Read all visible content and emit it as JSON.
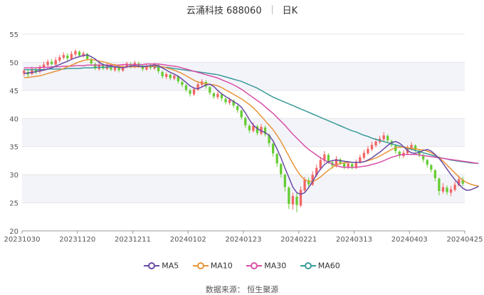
{
  "header": {
    "stock_name": "云涌科技 688060",
    "period": "日K"
  },
  "source_text": "数据来源： 恒生聚源",
  "colors": {
    "up": "#f26464",
    "down": "#66cc33",
    "ma5": "#6a4aa5",
    "ma10": "#e8943a",
    "ma30": "#d94fa8",
    "ma60": "#3a9a9a",
    "grid": "#e6e6e6",
    "band": "#f3f4fa"
  },
  "chart_data": {
    "type": "candlestick",
    "title": "云涌科技 688060 日K",
    "ylim": [
      20,
      55
    ],
    "y_ticks": [
      20,
      25,
      30,
      35,
      40,
      45,
      50,
      55
    ],
    "x_tick_labels": [
      "20231030",
      "20231120",
      "20231211",
      "20240102",
      "20240123",
      "20240221",
      "20240313",
      "20240403",
      "20240425"
    ],
    "legend": [
      "MA5",
      "MA10",
      "MA30",
      "MA60"
    ],
    "ma5": [
      48.0,
      48.1,
      48.2,
      48.3,
      48.5,
      48.6,
      48.8,
      49.0,
      49.3,
      49.6,
      49.9,
      50.2,
      50.5,
      50.8,
      51.0,
      51.2,
      51.3,
      51.0,
      50.6,
      50.0,
      49.6,
      49.4,
      49.3,
      49.2,
      49.1,
      49.0,
      49.2,
      49.3,
      49.4,
      49.3,
      49.2,
      49.3,
      49.4,
      49.5,
      49.4,
      49.0,
      48.6,
      48.2,
      47.9,
      47.5,
      47.0,
      46.4,
      45.8,
      45.4,
      45.3,
      45.6,
      46.0,
      46.1,
      45.7,
      45.0,
      44.4,
      43.9,
      43.5,
      43.0,
      42.6,
      42.0,
      41.0,
      39.8,
      38.8,
      38.2,
      37.8,
      37.5,
      37.0,
      36.0,
      34.6,
      33.0,
      31.2,
      29.5,
      27.8,
      26.8,
      26.5,
      26.8,
      27.7,
      28.8,
      30.0,
      31.0,
      31.8,
      32.3,
      32.5,
      32.6,
      32.5,
      32.4,
      32.3,
      32.2,
      32.2,
      32.2,
      32.3,
      32.6,
      33.0,
      33.5,
      34.0,
      34.6,
      35.2,
      35.7,
      35.9,
      35.6,
      35.0,
      34.3,
      33.9,
      33.8,
      34.0,
      34.3,
      34.5,
      34.2,
      33.6,
      32.9,
      32.0,
      31.0,
      30.0,
      29.1,
      28.3,
      27.6,
      27.2,
      27.3,
      27.6,
      27.9
    ],
    "ma10": [
      47.3,
      47.3,
      47.4,
      47.5,
      47.6,
      47.8,
      48.0,
      48.2,
      48.4,
      48.6,
      48.9,
      49.2,
      49.5,
      49.8,
      50.1,
      50.3,
      50.5,
      50.5,
      50.4,
      50.2,
      50.1,
      49.9,
      49.7,
      49.5,
      49.3,
      49.2,
      49.2,
      49.2,
      49.2,
      49.2,
      49.2,
      49.2,
      49.3,
      49.3,
      49.3,
      49.2,
      49.0,
      48.8,
      48.6,
      48.3,
      48.0,
      47.6,
      47.2,
      46.8,
      46.5,
      46.3,
      46.2,
      46.1,
      46.0,
      45.8,
      45.5,
      45.1,
      44.7,
      44.3,
      43.9,
      43.5,
      43.0,
      42.5,
      41.9,
      41.2,
      40.4,
      39.6,
      38.8,
      38.0,
      37.0,
      35.9,
      34.6,
      33.3,
      32.0,
      30.8,
      29.8,
      29.1,
      28.8,
      28.8,
      29.1,
      29.6,
      30.2,
      30.8,
      31.3,
      31.7,
      32.0,
      32.1,
      32.2,
      32.2,
      32.2,
      32.2,
      32.3,
      32.5,
      32.7,
      33.0,
      33.3,
      33.7,
      34.1,
      34.5,
      34.8,
      34.9,
      34.9,
      34.8,
      34.7,
      34.6,
      34.5,
      34.4,
      34.2,
      33.9,
      33.5,
      33.0,
      32.4,
      31.7,
      31.0,
      30.3,
      29.6,
      29.0,
      28.6,
      28.3,
      28.1,
      28.0
    ],
    "ma30": [
      49.0,
      49.0,
      49.0,
      49.0,
      49.1,
      49.1,
      49.1,
      49.2,
      49.2,
      49.2,
      49.3,
      49.3,
      49.3,
      49.4,
      49.4,
      49.4,
      49.5,
      49.5,
      49.5,
      49.5,
      49.5,
      49.5,
      49.5,
      49.5,
      49.5,
      49.6,
      49.6,
      49.6,
      49.6,
      49.6,
      49.6,
      49.7,
      49.7,
      49.7,
      49.7,
      49.6,
      49.5,
      49.4,
      49.3,
      49.2,
      49.0,
      48.8,
      48.6,
      48.4,
      48.2,
      48.0,
      47.8,
      47.6,
      47.4,
      47.2,
      46.9,
      46.6,
      46.3,
      46.0,
      45.6,
      45.2,
      44.7,
      44.2,
      43.7,
      43.2,
      42.7,
      42.1,
      41.5,
      40.9,
      40.2,
      39.5,
      38.8,
      38.0,
      37.2,
      36.5,
      35.8,
      35.1,
      34.5,
      34.0,
      33.5,
      33.0,
      32.6,
      32.2,
      31.9,
      31.6,
      31.4,
      31.3,
      31.3,
      31.3,
      31.3,
      31.4,
      31.5,
      31.6,
      31.8,
      32.0,
      32.2,
      32.5,
      32.8,
      33.1,
      33.3,
      33.5,
      33.6,
      33.6,
      33.6,
      33.6,
      33.5,
      33.4,
      33.3,
      33.2,
      33.1,
      33.0,
      32.9,
      32.8,
      32.7,
      32.6,
      32.5,
      32.4,
      32.3,
      32.2,
      32.1,
      32.0
    ],
    "ma60": [
      48.7,
      48.7,
      48.7,
      48.7,
      48.7,
      48.7,
      48.8,
      48.8,
      48.8,
      48.8,
      48.8,
      48.9,
      48.9,
      48.9,
      48.9,
      49.0,
      49.0,
      49.0,
      49.1,
      49.1,
      49.1,
      49.1,
      49.2,
      49.2,
      49.2,
      49.2,
      49.2,
      49.2,
      49.3,
      49.3,
      49.3,
      49.3,
      49.3,
      49.2,
      49.2,
      49.1,
      49.1,
      49.0,
      48.9,
      48.8,
      48.7,
      48.6,
      48.5,
      48.4,
      48.3,
      48.2,
      48.1,
      48.0,
      47.9,
      47.8,
      47.6,
      47.4,
      47.2,
      47.0,
      46.8,
      46.6,
      46.3,
      46.0,
      45.7,
      45.4,
      45.0,
      44.6,
      44.2,
      43.8,
      43.5,
      43.2,
      42.9,
      42.6,
      42.3,
      42.0,
      41.7,
      41.4,
      41.1,
      40.8,
      40.5,
      40.2,
      39.9,
      39.6,
      39.3,
      39.0,
      38.7,
      38.4,
      38.1,
      37.8,
      37.6,
      37.3,
      37.0,
      36.8,
      36.5,
      36.3,
      36.1,
      35.9,
      35.7,
      35.5,
      35.3,
      35.1,
      34.9,
      34.7,
      34.5,
      34.3,
      34.1,
      33.9,
      33.7,
      33.5,
      33.3,
      33.1,
      32.9,
      32.8,
      32.6,
      32.5,
      32.4,
      32.3,
      32.2,
      32.1,
      32.05,
      32.0
    ],
    "candles": [
      [
        48.0,
        48.5,
        48.9,
        47.5
      ],
      [
        48.3,
        47.8,
        48.6,
        47.3
      ],
      [
        47.9,
        48.8,
        49.2,
        47.7
      ],
      [
        48.6,
        48.2,
        49.0,
        47.9
      ],
      [
        48.3,
        49.1,
        49.5,
        48.0
      ],
      [
        49.0,
        49.6,
        50.1,
        48.8
      ],
      [
        49.5,
        50.1,
        50.5,
        49.2
      ],
      [
        50.1,
        49.7,
        50.6,
        49.4
      ],
      [
        49.6,
        50.4,
        50.9,
        49.3
      ],
      [
        50.3,
        50.9,
        51.3,
        50.0
      ],
      [
        50.8,
        51.3,
        51.8,
        50.5
      ],
      [
        51.2,
        50.7,
        51.6,
        50.3
      ],
      [
        50.6,
        51.5,
        52.0,
        50.4
      ],
      [
        51.4,
        52.0,
        52.3,
        51.0
      ],
      [
        51.9,
        51.2,
        52.1,
        50.9
      ],
      [
        51.1,
        51.6,
        52.0,
        50.8
      ],
      [
        51.5,
        50.6,
        51.7,
        50.3
      ],
      [
        50.5,
        49.8,
        50.9,
        49.5
      ],
      [
        49.7,
        48.9,
        49.9,
        48.6
      ],
      [
        48.8,
        49.6,
        50.0,
        48.5
      ],
      [
        49.5,
        48.9,
        49.8,
        48.6
      ],
      [
        48.8,
        49.5,
        49.9,
        48.6
      ],
      [
        49.4,
        48.7,
        49.6,
        48.4
      ],
      [
        48.6,
        49.3,
        49.7,
        48.3
      ],
      [
        49.2,
        48.6,
        49.4,
        48.2
      ],
      [
        48.5,
        49.2,
        49.6,
        48.3
      ],
      [
        49.1,
        49.8,
        50.1,
        48.9
      ],
      [
        49.7,
        49.2,
        50.0,
        48.9
      ],
      [
        49.1,
        49.9,
        50.3,
        48.9
      ],
      [
        49.8,
        49.3,
        50.1,
        49.0
      ],
      [
        49.2,
        48.8,
        49.5,
        48.4
      ],
      [
        48.7,
        49.4,
        49.8,
        48.5
      ],
      [
        49.3,
        49.0,
        49.7,
        48.7
      ],
      [
        48.9,
        49.6,
        49.9,
        48.6
      ],
      [
        49.5,
        48.4,
        49.6,
        48.0
      ],
      [
        48.3,
        47.5,
        48.5,
        47.1
      ],
      [
        47.4,
        47.9,
        48.2,
        47.0
      ],
      [
        47.8,
        47.2,
        48.0,
        46.8
      ],
      [
        47.1,
        47.6,
        47.9,
        46.8
      ],
      [
        47.5,
        46.6,
        47.7,
        46.2
      ],
      [
        46.5,
        46.0,
        46.8,
        45.6
      ],
      [
        45.9,
        45.1,
        46.1,
        44.7
      ],
      [
        45.0,
        44.4,
        45.3,
        43.9
      ],
      [
        44.3,
        45.2,
        45.6,
        44.0
      ],
      [
        45.1,
        46.1,
        46.6,
        44.9
      ],
      [
        46.0,
        46.6,
        47.0,
        45.7
      ],
      [
        46.5,
        45.7,
        46.8,
        45.3
      ],
      [
        45.6,
        44.6,
        45.8,
        44.2
      ],
      [
        44.5,
        43.9,
        44.7,
        43.5
      ],
      [
        43.8,
        44.4,
        44.8,
        43.4
      ],
      [
        44.3,
        43.6,
        44.5,
        43.1
      ],
      [
        43.5,
        42.9,
        43.7,
        42.5
      ],
      [
        42.8,
        43.3,
        43.7,
        42.4
      ],
      [
        43.2,
        42.3,
        43.4,
        41.9
      ],
      [
        42.2,
        41.5,
        42.4,
        41.0
      ],
      [
        41.4,
        40.2,
        41.6,
        39.8
      ],
      [
        40.1,
        38.8,
        40.3,
        38.3
      ],
      [
        38.7,
        37.9,
        39.0,
        37.4
      ],
      [
        37.8,
        38.7,
        39.3,
        37.5
      ],
      [
        38.6,
        37.4,
        38.9,
        37.0
      ],
      [
        37.3,
        38.5,
        39.0,
        37.0
      ],
      [
        38.4,
        37.2,
        38.7,
        36.8
      ],
      [
        37.1,
        35.6,
        37.3,
        35.0
      ],
      [
        35.5,
        33.8,
        35.7,
        33.2
      ],
      [
        33.7,
        32.0,
        33.9,
        31.4
      ],
      [
        31.9,
        30.1,
        32.1,
        29.5
      ],
      [
        30.0,
        27.8,
        30.2,
        27.0
      ],
      [
        27.7,
        24.8,
        27.9,
        23.9
      ],
      [
        24.7,
        26.2,
        26.8,
        23.8
      ],
      [
        26.1,
        24.6,
        26.7,
        23.3
      ],
      [
        24.5,
        27.3,
        27.9,
        24.2
      ],
      [
        27.2,
        29.1,
        29.6,
        26.9
      ],
      [
        29.0,
        28.3,
        29.5,
        27.8
      ],
      [
        28.2,
        30.0,
        30.6,
        28.0
      ],
      [
        29.9,
        31.2,
        31.8,
        29.6
      ],
      [
        31.1,
        32.6,
        33.2,
        30.8
      ],
      [
        32.5,
        33.6,
        34.2,
        32.1
      ],
      [
        33.5,
        32.3,
        33.8,
        31.9
      ],
      [
        32.2,
        31.6,
        32.5,
        31.1
      ],
      [
        31.5,
        32.8,
        33.3,
        31.3
      ],
      [
        32.7,
        32.1,
        33.0,
        31.7
      ],
      [
        32.0,
        31.4,
        32.3,
        31.0
      ],
      [
        31.3,
        32.0,
        32.4,
        31.0
      ],
      [
        31.9,
        31.3,
        32.2,
        30.9
      ],
      [
        31.2,
        32.3,
        32.7,
        31.0
      ],
      [
        32.2,
        33.1,
        33.6,
        31.9
      ],
      [
        33.0,
        33.9,
        34.4,
        32.7
      ],
      [
        33.8,
        34.6,
        35.1,
        33.5
      ],
      [
        34.5,
        35.3,
        35.9,
        34.2
      ],
      [
        35.2,
        35.9,
        36.5,
        34.9
      ],
      [
        35.8,
        36.4,
        36.9,
        35.5
      ],
      [
        36.3,
        37.0,
        37.6,
        36.0
      ],
      [
        36.9,
        36.1,
        37.2,
        35.7
      ],
      [
        36.0,
        35.3,
        36.2,
        34.9
      ],
      [
        35.2,
        34.2,
        35.4,
        33.7
      ],
      [
        34.1,
        33.4,
        34.3,
        32.9
      ],
      [
        33.3,
        33.9,
        34.4,
        33.0
      ],
      [
        33.8,
        34.7,
        35.2,
        33.5
      ],
      [
        34.6,
        35.3,
        35.8,
        34.3
      ],
      [
        35.2,
        34.4,
        35.4,
        34.0
      ],
      [
        34.3,
        33.6,
        34.5,
        33.1
      ],
      [
        33.5,
        32.7,
        33.7,
        32.2
      ],
      [
        32.6,
        31.8,
        32.8,
        31.3
      ],
      [
        31.7,
        30.9,
        31.9,
        30.4
      ],
      [
        30.8,
        29.4,
        31.0,
        28.8
      ],
      [
        29.3,
        27.1,
        29.5,
        26.3
      ],
      [
        27.0,
        27.8,
        28.5,
        26.6
      ],
      [
        27.7,
        26.9,
        28.1,
        26.4
      ],
      [
        26.8,
        27.4,
        28.0,
        26.2
      ],
      [
        27.3,
        28.2,
        28.8,
        27.0
      ],
      [
        28.1,
        29.2,
        29.8,
        27.9
      ],
      [
        29.1,
        28.4,
        29.6,
        28.0
      ]
    ]
  }
}
